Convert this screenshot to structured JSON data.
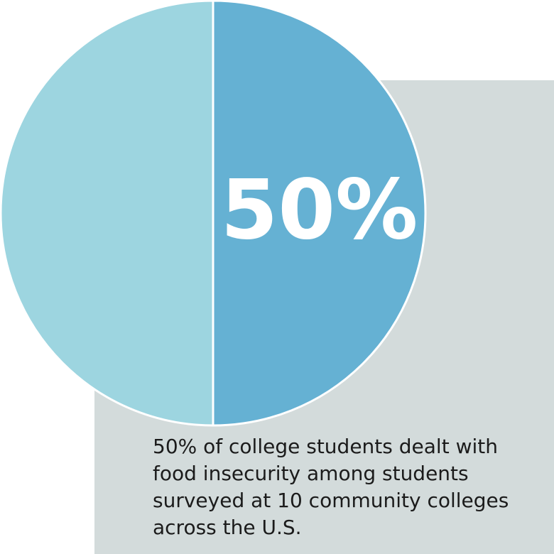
{
  "chart_data": {
    "type": "pie",
    "values": [
      50,
      50
    ],
    "value_labels": [
      "50%",
      null
    ],
    "colors": [
      "#65b1d3",
      "#9dd5e0"
    ],
    "caption": [
      "50% of college students dealt with",
      "food insecurity among students",
      "surveyed at 10 community colleges",
      "across the U.S."
    ]
  }
}
